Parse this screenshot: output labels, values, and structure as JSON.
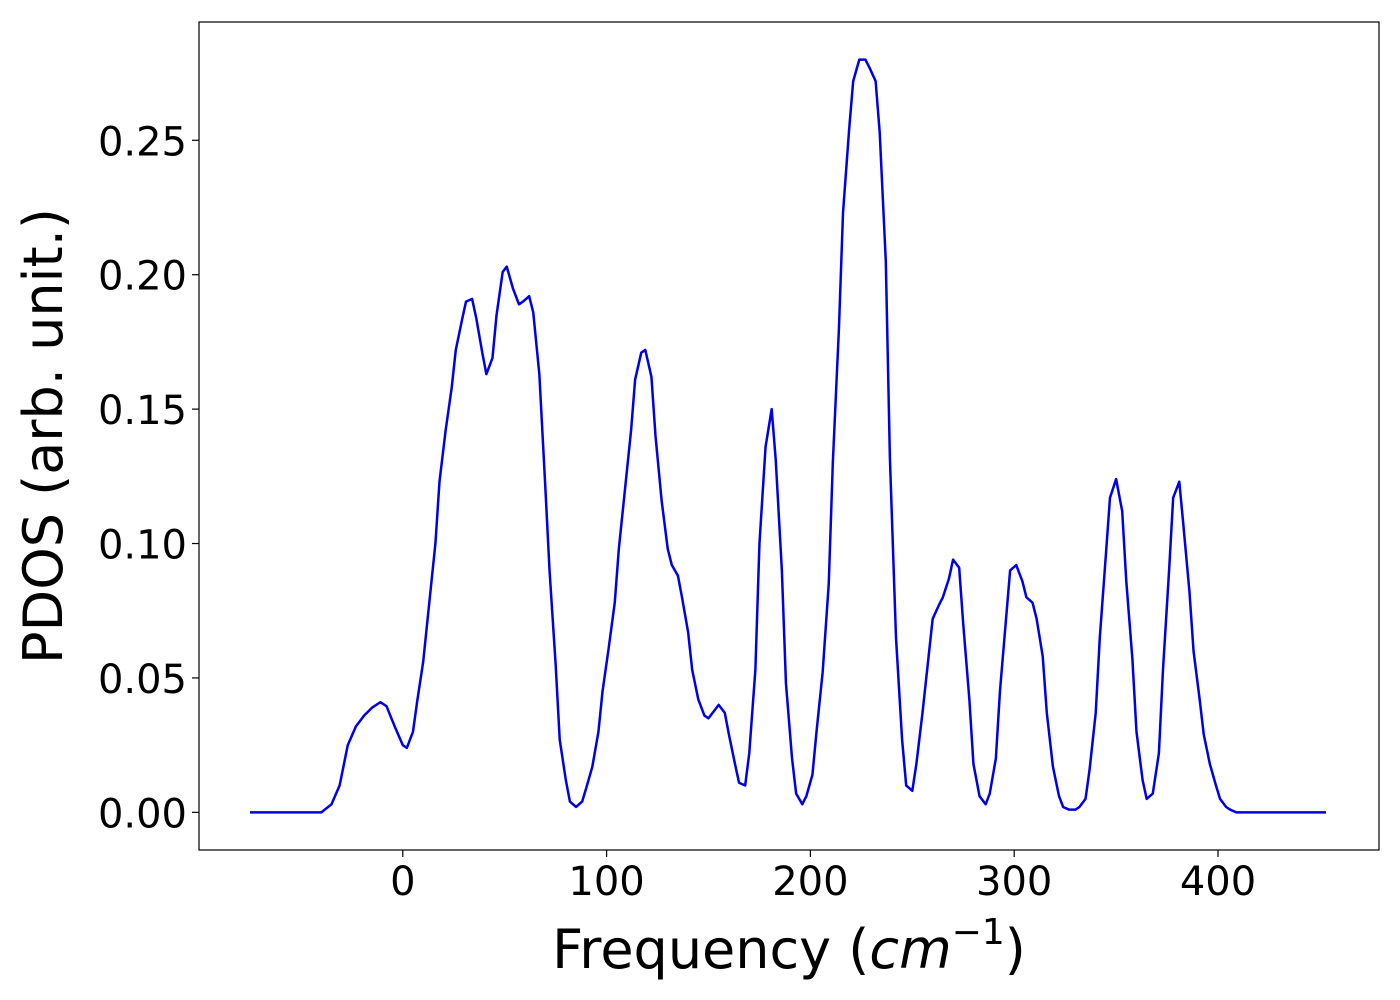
{
  "chart_data": {
    "type": "line",
    "xlabel": [
      "Frequency (",
      "cm",
      "−1",
      ")"
    ],
    "ylabel": "PDOS (arb. unit.)",
    "xlim": [
      -100,
      479
    ],
    "ylim": [
      -0.014,
      0.294
    ],
    "xticks": [
      0,
      100,
      200,
      300,
      400
    ],
    "yticks": [
      {
        "value": 0,
        "label": "0.00"
      },
      {
        "value": 0.05,
        "label": "0.05"
      },
      {
        "value": 0.1,
        "label": "0.10"
      },
      {
        "value": 0.15,
        "label": "0.15"
      },
      {
        "value": 0.2,
        "label": "0.20"
      },
      {
        "value": 0.25,
        "label": "0.25"
      }
    ],
    "series": [
      {
        "color": "#0000e6",
        "x": [
          -75,
          -40,
          -35,
          -31,
          -27,
          -23,
          -19,
          -15,
          -11,
          -8,
          -4,
          0,
          2,
          5,
          7,
          10,
          13,
          16,
          18,
          21,
          24,
          26,
          29,
          31,
          34,
          36,
          39,
          41,
          44,
          46,
          49,
          51,
          54,
          57,
          59,
          62,
          64,
          67,
          70,
          72,
          75,
          77,
          80,
          82,
          85,
          88,
          90,
          93,
          96,
          98,
          101,
          104,
          106,
          109,
          112,
          114,
          117,
          119,
          122,
          124,
          127,
          130,
          132,
          135,
          137,
          140,
          142,
          145,
          148,
          150,
          153,
          155,
          158,
          160,
          163,
          165,
          168,
          170,
          173,
          175,
          178,
          181,
          183,
          186,
          188,
          191,
          193,
          196,
          198,
          201,
          203,
          206,
          209,
          211,
          214,
          216,
          219,
          221,
          224,
          227,
          229,
          232,
          234,
          237,
          239,
          242,
          245,
          247,
          250,
          252,
          255,
          258,
          260,
          263,
          265,
          268,
          270,
          273,
          275,
          278,
          280,
          283,
          286,
          288,
          291,
          293,
          296,
          298,
          301,
          304,
          306,
          309,
          311,
          314,
          316,
          319,
          322,
          324,
          327,
          330,
          332,
          335,
          337,
          340,
          342,
          345,
          347,
          350,
          353,
          355,
          358,
          360,
          363,
          365,
          368,
          371,
          373,
          376,
          378,
          381,
          383,
          386,
          388,
          391,
          393,
          396,
          399,
          401,
          404,
          406,
          409,
          453
        ],
        "values": [
          0,
          0,
          0.003,
          0.01,
          0.025,
          0.032,
          0.036,
          0.039,
          0.041,
          0.0395,
          0.032,
          0.025,
          0.024,
          0.03,
          0.041,
          0.056,
          0.078,
          0.1,
          0.123,
          0.142,
          0.158,
          0.172,
          0.183,
          0.19,
          0.191,
          0.184,
          0.171,
          0.163,
          0.169,
          0.185,
          0.201,
          0.203,
          0.195,
          0.189,
          0.19,
          0.192,
          0.186,
          0.163,
          0.12,
          0.09,
          0.055,
          0.027,
          0.012,
          0.004,
          0.002,
          0.004,
          0.009,
          0.017,
          0.03,
          0.045,
          0.061,
          0.078,
          0.098,
          0.12,
          0.142,
          0.161,
          0.171,
          0.172,
          0.162,
          0.14,
          0.116,
          0.098,
          0.092,
          0.088,
          0.08,
          0.067,
          0.053,
          0.042,
          0.036,
          0.035,
          0.038,
          0.04,
          0.037,
          0.029,
          0.018,
          0.011,
          0.01,
          0.022,
          0.053,
          0.1,
          0.136,
          0.15,
          0.131,
          0.09,
          0.048,
          0.02,
          0.007,
          0.003,
          0.006,
          0.014,
          0.03,
          0.052,
          0.085,
          0.13,
          0.18,
          0.223,
          0.254,
          0.272,
          0.28,
          0.28,
          0.277,
          0.272,
          0.253,
          0.205,
          0.132,
          0.065,
          0.027,
          0.01,
          0.008,
          0.018,
          0.037,
          0.058,
          0.072,
          0.077,
          0.08,
          0.087,
          0.094,
          0.091,
          0.07,
          0.042,
          0.018,
          0.006,
          0.003,
          0.007,
          0.02,
          0.045,
          0.072,
          0.09,
          0.092,
          0.086,
          0.08,
          0.078,
          0.072,
          0.058,
          0.037,
          0.017,
          0.006,
          0.002,
          0.001,
          0.001,
          0.002,
          0.005,
          0.016,
          0.037,
          0.065,
          0.096,
          0.117,
          0.124,
          0.112,
          0.086,
          0.057,
          0.03,
          0.012,
          0.005,
          0.007,
          0.022,
          0.053,
          0.09,
          0.117,
          0.123,
          0.107,
          0.082,
          0.06,
          0.042,
          0.029,
          0.018,
          0.01,
          0.005,
          0.002,
          0.001,
          0,
          0
        ]
      }
    ]
  }
}
